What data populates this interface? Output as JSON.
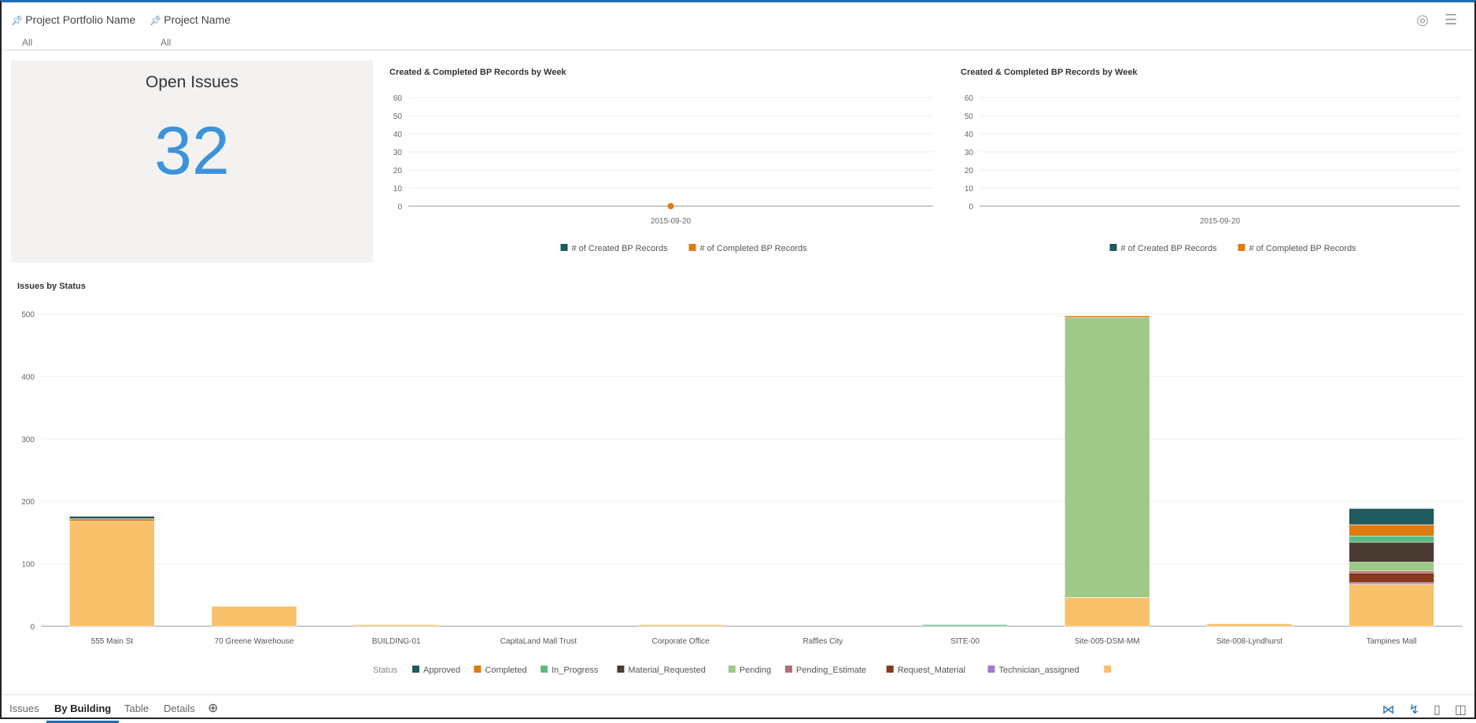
{
  "filters": [
    {
      "label": "Project Portfolio Name",
      "value": "All"
    },
    {
      "label": "Project Name",
      "value": "All"
    }
  ],
  "kpi": {
    "title": "Open Issues",
    "value": "32"
  },
  "tabs": [
    "Issues",
    "By Building",
    "Table",
    "Details"
  ],
  "colors": {
    "Approved": "#1f5a5e",
    "Completed": "#e07b0f",
    "In_Progress": "#5cba82",
    "Material_Requested": "#4a3c32",
    "Pending": "#9fc987",
    "Pending_Estimate": "#b56b7e",
    "Request_Material": "#853a1c",
    "Technician_assigned": "#9b7bd1",
    "": "#f9c06a"
  },
  "chart_data": [
    {
      "type": "line",
      "title": "Created & Completed BP Records by Week",
      "x": [
        "2015-09-20"
      ],
      "ylim": [
        0,
        60
      ],
      "yticks": [
        0,
        10,
        20,
        30,
        40,
        50,
        60
      ],
      "series": [
        {
          "name": "# of Created BP Records",
          "values": [
            0
          ],
          "color": "#1f5a5e"
        },
        {
          "name": "# of Completed BP Records",
          "values": [
            0
          ],
          "color": "#e07b0f",
          "marker": true
        }
      ],
      "legend": "bottom"
    },
    {
      "type": "line",
      "title": "Created & Completed BP Records by Week",
      "x": [
        "2015-09-20"
      ],
      "ylim": [
        0,
        60
      ],
      "yticks": [
        0,
        10,
        20,
        30,
        40,
        50,
        60
      ],
      "series": [
        {
          "name": "# of Created BP Records",
          "values": [
            0
          ],
          "color": "#1f5a5e"
        },
        {
          "name": "# of Completed BP Records",
          "values": [
            0
          ],
          "color": "#e07b0f",
          "marker": false
        }
      ],
      "legend": "bottom"
    },
    {
      "type": "bar",
      "stacked": true,
      "title": "Issues by Status",
      "legend_title": "Status",
      "legend": "bottom",
      "ylim": [
        0,
        500
      ],
      "yticks": [
        0,
        100,
        200,
        300,
        400,
        500
      ],
      "categories": [
        "555 Main St",
        "70 Greene Warehouse",
        "BUILDING-01",
        "CapitaLand Mall Trust",
        "Corporate Office",
        "Raffles City",
        "SITE-00",
        "Site-005-DSM-MM",
        "Site-008-Lyndhurst",
        "Tampines Mall"
      ],
      "series": [
        {
          "name": "",
          "values": [
            168,
            32,
            2,
            0,
            2,
            0,
            0,
            46,
            4,
            67
          ]
        },
        {
          "name": "Technician_assigned",
          "values": [
            0,
            0,
            0,
            0,
            0,
            0,
            0,
            0,
            0,
            2
          ]
        },
        {
          "name": "Request_Material",
          "values": [
            0,
            0,
            0,
            0,
            0,
            0,
            0,
            0,
            0,
            16
          ]
        },
        {
          "name": "Pending_Estimate",
          "values": [
            0,
            0,
            0,
            0,
            0,
            0,
            0,
            0,
            0,
            3
          ]
        },
        {
          "name": "Pending",
          "values": [
            0,
            0,
            0,
            0,
            0,
            0,
            0,
            448,
            0,
            14
          ]
        },
        {
          "name": "Material_Requested",
          "values": [
            0,
            0,
            0,
            0,
            0,
            0,
            0,
            0,
            0,
            32
          ]
        },
        {
          "name": "In_Progress",
          "values": [
            0,
            0,
            0,
            0,
            0,
            0,
            2,
            0,
            0,
            10
          ]
        },
        {
          "name": "Completed",
          "values": [
            4,
            0,
            0,
            0,
            0,
            0,
            0,
            3,
            0,
            18
          ]
        },
        {
          "name": "Approved",
          "values": [
            4,
            0,
            0,
            0,
            0,
            0,
            0,
            0,
            0,
            26
          ]
        }
      ],
      "legend_order": [
        "Approved",
        "Completed",
        "In_Progress",
        "Material_Requested",
        "Pending",
        "Pending_Estimate",
        "Request_Material",
        "Technician_assigned",
        ""
      ]
    }
  ]
}
